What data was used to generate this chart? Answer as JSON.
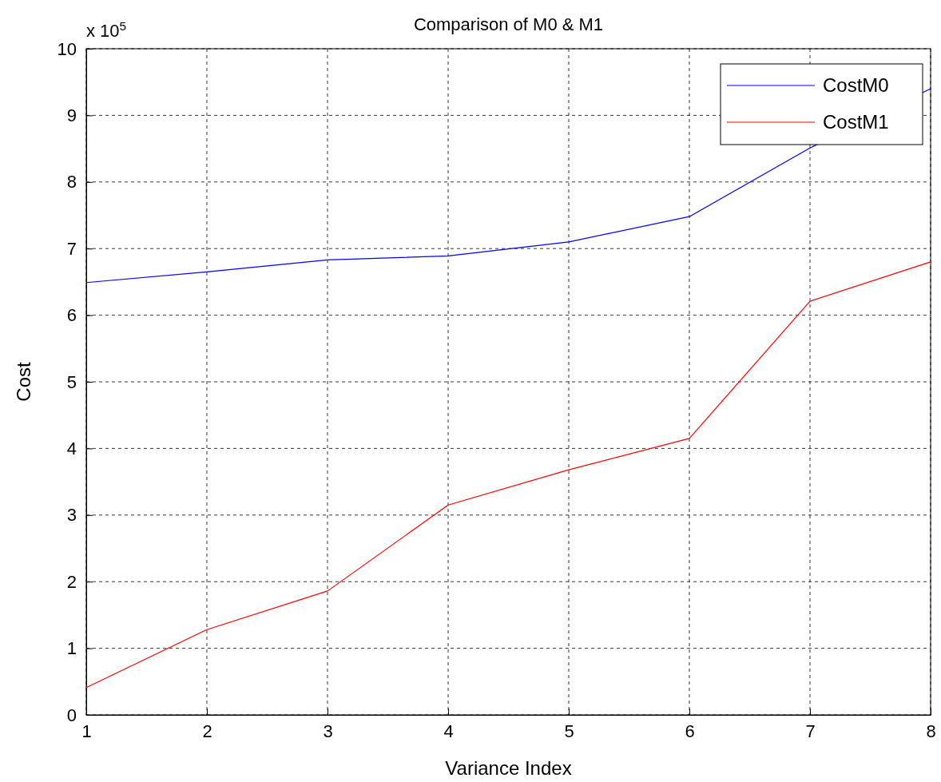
{
  "chart_data": {
    "type": "line",
    "title": "Comparison of M0 & M1",
    "xlabel": "Variance Index",
    "ylabel": "Cost",
    "annotations": [
      "x 10$^{5}$"
    ],
    "x": [
      1,
      2,
      3,
      4,
      5,
      6,
      7,
      8
    ],
    "series": [
      {
        "name": "CostM0",
        "color": "#0000ff",
        "values": [
          6.49,
          6.65,
          6.83,
          6.89,
          7.1,
          7.48,
          8.51,
          9.4
        ]
      },
      {
        "name": "CostM1",
        "color": "#ff0000",
        "values": [
          0.41,
          1.28,
          1.86,
          3.15,
          3.68,
          4.15,
          6.21,
          6.8
        ]
      }
    ],
    "xlim": [
      1,
      8
    ],
    "xticks": [
      1,
      2,
      3,
      4,
      5,
      6,
      7,
      8
    ],
    "ylim": [
      0,
      10
    ],
    "yticks": [
      0,
      1,
      2,
      3,
      4,
      5,
      6,
      7,
      8,
      9,
      10
    ],
    "grid": true,
    "legend": "top right",
    "line_style": "solid"
  }
}
